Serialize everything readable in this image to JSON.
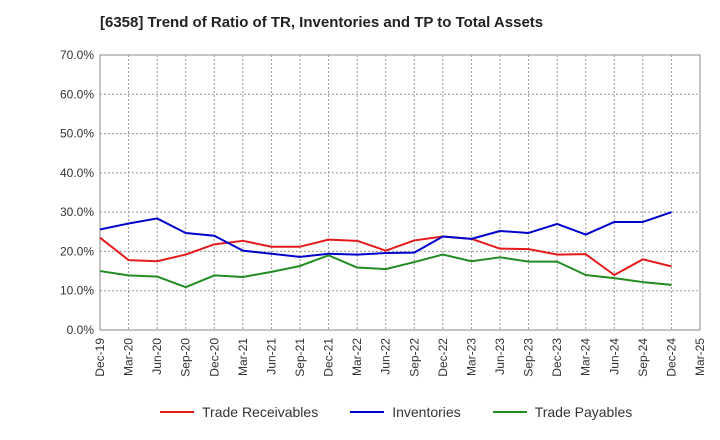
{
  "chart_data": {
    "type": "line",
    "title": "[6358]  Trend of Ratio of TR, Inventories and TP to Total Assets",
    "xlabel": "",
    "ylabel": "",
    "ylim": [
      0,
      70
    ],
    "y_ticks": [
      "0.0%",
      "10.0%",
      "20.0%",
      "30.0%",
      "40.0%",
      "50.0%",
      "60.0%",
      "70.0%"
    ],
    "x_ticks": [
      "Dec-19",
      "Mar-20",
      "Jun-20",
      "Sep-20",
      "Dec-20",
      "Mar-21",
      "Jun-21",
      "Sep-21",
      "Dec-21",
      "Mar-22",
      "Jun-22",
      "Sep-22",
      "Dec-22",
      "Mar-23",
      "Jun-23",
      "Sep-23",
      "Dec-23",
      "Mar-24",
      "Jun-24",
      "Sep-24",
      "Dec-24",
      "Mar-25"
    ],
    "grid": true,
    "legend_position": "bottom",
    "series": [
      {
        "name": "Trade Receivables",
        "color": "#e41a1c",
        "values": [
          23.5,
          17.8,
          17.5,
          19.2,
          21.8,
          22.7,
          21.2,
          21.2,
          23.0,
          22.7,
          20.2,
          22.8,
          23.8,
          23.2,
          20.7,
          20.6,
          19.2,
          19.3,
          14.0,
          18.0,
          16.2,
          null
        ]
      },
      {
        "name": "Inventories",
        "color": "#0000cc",
        "values": [
          25.6,
          27.1,
          28.4,
          24.7,
          24.0,
          20.2,
          19.4,
          18.6,
          19.4,
          19.2,
          19.6,
          19.7,
          23.8,
          23.2,
          25.2,
          24.7,
          27.0,
          24.3,
          27.5,
          27.5,
          30.0,
          null
        ]
      },
      {
        "name": "Trade Payables",
        "color": "#228b22",
        "values": [
          15.0,
          13.9,
          13.6,
          10.9,
          13.9,
          13.5,
          14.8,
          16.3,
          19.0,
          15.9,
          15.5,
          17.3,
          19.2,
          17.5,
          18.5,
          17.4,
          17.4,
          14.0,
          13.2,
          12.2,
          11.5,
          null
        ]
      }
    ]
  }
}
